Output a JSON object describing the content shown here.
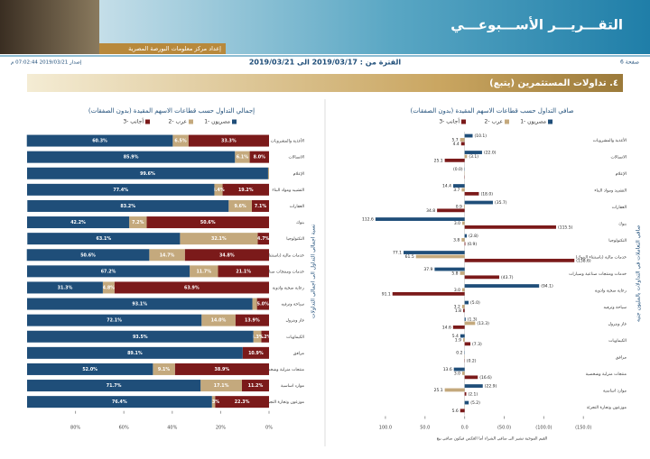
{
  "header": {
    "title": "التقـــريـــر الأســـبوعـــي",
    "subtitle": "إعداد مركز معلومات البورصة المصرية",
    "page": "صفحة 6",
    "period": "الفترة من : 2019/03/17 الى 2019/03/21",
    "issued": "إصدار 2019/03/21 07:02:44 م",
    "section": "٤. تداولات المستثمرين (يتبع)"
  },
  "chart_data": [
    {
      "type": "bar",
      "stacked": true,
      "title": "إجمالي التداول حسب قطاعات الاسهم المقيدة (بدون الصفقات)",
      "y_title": "نسبة اجمالي التداول الى اجمالي التداولات",
      "categories": [
        "الأغذية والمشروبات",
        "الاتصالات",
        "الإعلام",
        "التشييد ومواد البناء",
        "العقارات",
        "بنوك",
        "التكنولوجيا",
        "خدمات مالية (باستثناء البنوك)",
        "خدمات ومنتجات صناعية وسيارات",
        "رعاية صحية وادوية",
        "سياحة وترفيه",
        "غاز وبترول",
        "الكيماويات",
        "مرافق",
        "منتجات منزلية وشخصية",
        "موارد اساسية",
        "موزعون وتجارة التجزئة"
      ],
      "series": [
        {
          "name": "مصريون -1",
          "color": "#1f4e79",
          "values": [
            60.3,
            85.9,
            99.6,
            77.4,
            83.2,
            42.2,
            63.1,
            50.6,
            67.2,
            31.3,
            93.1,
            72.1,
            93.5,
            89.1,
            52.0,
            71.7,
            76.4
          ],
          "value_labels": [
            "60.3%",
            "85.9%",
            "99.6%",
            "77.4%",
            "83.2%",
            "42.2%",
            "63.1%",
            "50.6%",
            "67.2%",
            "31.3%",
            "93.1%",
            "72.1%",
            "93.5%",
            "89.1%",
            "52.0%",
            "71.7%",
            "76.4%"
          ]
        },
        {
          "name": "عرب -2",
          "color": "#c4a97d",
          "values": [
            6.5,
            6.1,
            0.4,
            3.4,
            9.6,
            7.2,
            32.1,
            14.7,
            11.7,
            4.8,
            1.9,
            14.0,
            3.3,
            0,
            9.1,
            17.1,
            1.3
          ],
          "value_labels": [
            "6.5%",
            "6.1%",
            null,
            "3.4%",
            "9.6%",
            "7.2%",
            "32.1%",
            "14.7%",
            "11.7%",
            "4.8%",
            null,
            "14.0%",
            "3.3%",
            null,
            "9.1%",
            "17.1%",
            "1.3%"
          ]
        },
        {
          "name": "أجانب -3",
          "color": "#7b1a1a",
          "values": [
            33.3,
            8.0,
            0,
            19.2,
            7.1,
            50.6,
            4.7,
            34.8,
            21.1,
            63.9,
            5.0,
            13.9,
            3.2,
            10.9,
            38.9,
            11.2,
            22.3
          ],
          "value_labels": [
            "33.3%",
            "8.0%",
            "0",
            "19.2%",
            "7.1%",
            "50.6%",
            "4.7%",
            "34.8%",
            "21.1%",
            "63.9%",
            "5.0%",
            "13.9%",
            "3.2%",
            "10.9%",
            "38.9%",
            "11.2%",
            "22.3%"
          ]
        }
      ],
      "xlim": [
        100,
        0
      ],
      "xticks": [
        {
          "value": 80,
          "label": "80%"
        },
        {
          "value": 60,
          "label": "60%"
        },
        {
          "value": 40,
          "label": "40%"
        },
        {
          "value": 20,
          "label": "20%"
        },
        {
          "value": 0,
          "label": "0%"
        }
      ]
    },
    {
      "type": "bar",
      "stacked": false,
      "title": "صافي التداول حسب قطاعات الاسهم المقيدة (بدون الصفقات)",
      "y_title": "صافي التعاملات في التداولات بالمليون جنيه",
      "note": "القيم الموجبة تشير الى صافي الشراء أما العكس فيكون صافي بيع",
      "categories": [
        "الأغذية والمشروبات",
        "الاتصالات",
        "الإعلام",
        "التشييد ومواد البناء",
        "العقارات",
        "بنوك",
        "التكنولوجيا",
        "خدمات مالية (باستثناء البنوك)",
        "خدمات ومنتجات صناعية وسيارات",
        "رعاية صحية وادوية",
        "سياحة وترفيه",
        "غاز وبترول",
        "الكيماويات",
        "مرافق",
        "منتجات منزلية وشخصية",
        "موارد اساسية",
        "موزعون وتجارة التجزئة"
      ],
      "series": [
        {
          "name": "مصريون -1",
          "color": "#1f4e79",
          "values": [
            -10.1,
            -22.0,
            0.0,
            14.4,
            -35.7,
            112.6,
            -2.8,
            77.1,
            37.9,
            -94.1,
            -5.0,
            -1.3,
            5.4,
            0.2,
            13.6,
            -22.9,
            -5.2
          ],
          "value_labels": [
            "(10.1)",
            "(22.0)",
            "(0.0)",
            "14.4",
            "(35.7)",
            "112.6",
            "(2.8)",
            "77.1",
            "37.9",
            "(94.1)",
            "(5.0)",
            "(1.3)",
            "5.4",
            "0.2",
            "13.6",
            "(22.9)",
            "(5.2)"
          ]
        },
        {
          "name": "عرب -2",
          "color": "#c4a97d",
          "values": [
            5.7,
            -3.1,
            0,
            3.7,
            0.9,
            3.0,
            3.8,
            61.5,
            5.8,
            3.0,
            3.2,
            -13.3,
            1.9,
            0,
            3.0,
            25.1,
            0
          ],
          "value_labels": [
            "5.7",
            "(3.1)",
            null,
            "3.7",
            "0.9",
            "3.0",
            "3.8",
            "61.5",
            "5.8",
            "3.0",
            "3.2",
            "(13.3)",
            "1.9",
            null,
            "3.0",
            "25.1",
            null
          ]
        },
        {
          "name": "أجانب -3",
          "color": "#7b1a1a",
          "values": [
            4.4,
            25.1,
            0,
            -18.0,
            34.8,
            -115.5,
            -0.9,
            -138.6,
            -43.7,
            91.1,
            1.8,
            14.6,
            -7.3,
            -0.2,
            -16.6,
            -2.1,
            5.6
          ],
          "value_labels": [
            "4.4",
            "25.1",
            null,
            "(18.0)",
            "34.8",
            "(115.5)",
            "(0.9)",
            "(138.6)",
            "(43.7)",
            "91.1",
            "1.8",
            "14.6",
            "(7.3)",
            "(0.2)",
            "(16.6)",
            "(2.1)",
            "5.6"
          ]
        }
      ],
      "xlim": [
        125,
        -160
      ],
      "xticks": [
        {
          "value": 100,
          "label": "100.0"
        },
        {
          "value": 50,
          "label": "50.0"
        },
        {
          "value": 0,
          "label": "0.0"
        },
        {
          "value": -50,
          "label": "(50.0)"
        },
        {
          "value": -100,
          "label": "(100.0)"
        },
        {
          "value": -150,
          "label": "(150.0)"
        }
      ]
    }
  ]
}
